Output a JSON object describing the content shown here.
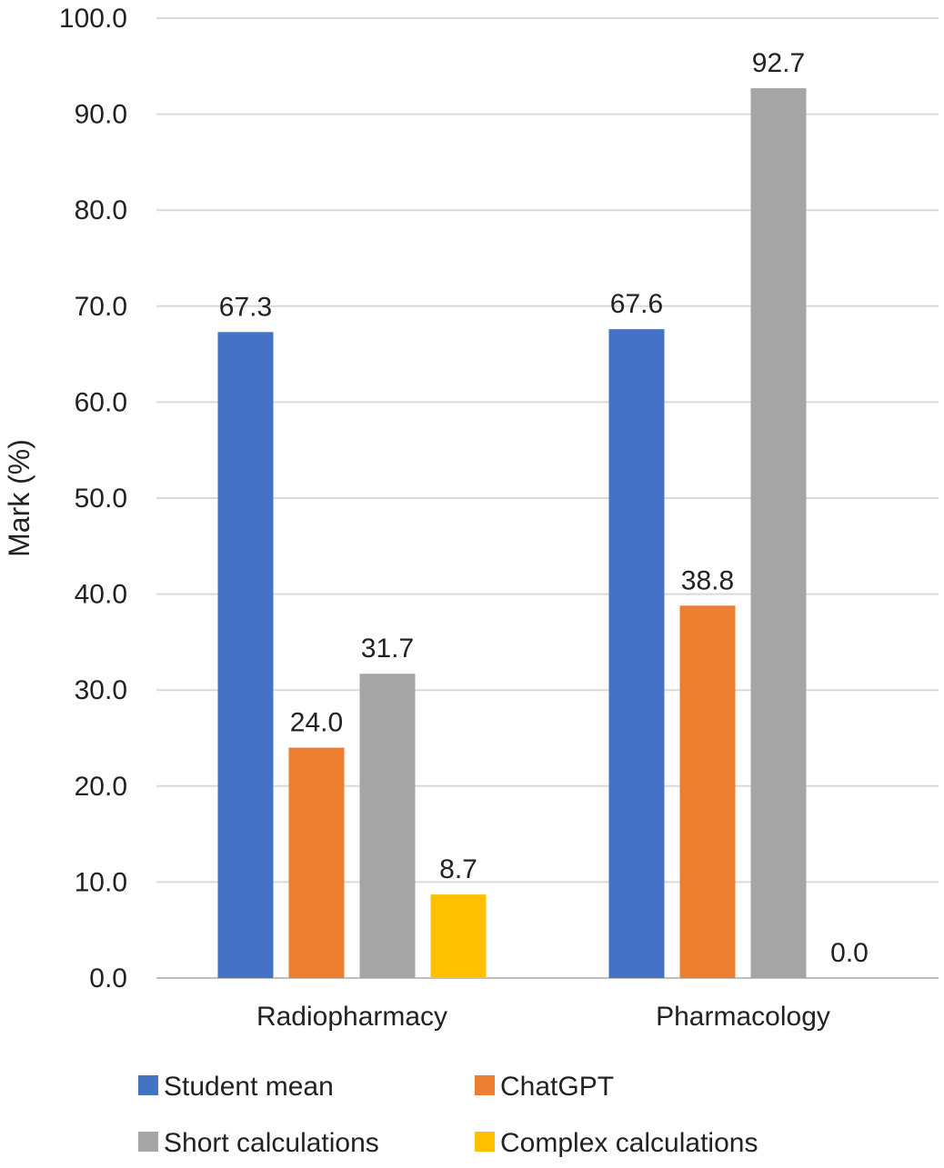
{
  "chart_data": {
    "type": "bar",
    "title": "",
    "xlabel": "",
    "ylabel": "Mark (%)",
    "ylim": [
      0,
      100
    ],
    "yticks": [
      "0.0",
      "10.0",
      "20.0",
      "30.0",
      "40.0",
      "50.0",
      "60.0",
      "70.0",
      "80.0",
      "90.0",
      "100.0"
    ],
    "grid": true,
    "legend_position": "bottom",
    "categories": [
      "Radiopharmacy",
      "Pharmacology"
    ],
    "series": [
      {
        "name": "Student mean",
        "color": "#4472C4",
        "values": [
          67.3,
          67.6
        ],
        "labels": [
          "67.3",
          "67.6"
        ]
      },
      {
        "name": "ChatGPT",
        "color": "#ED7D31",
        "values": [
          24.0,
          38.8
        ],
        "labels": [
          "24.0",
          "38.8"
        ]
      },
      {
        "name": "Short calculations",
        "color": "#A5A5A5",
        "values": [
          31.7,
          92.7
        ],
        "labels": [
          "31.7",
          "92.7"
        ]
      },
      {
        "name": "Complex calculations",
        "color": "#FFC000",
        "values": [
          8.7,
          0.0
        ],
        "labels": [
          "8.7",
          "0.0"
        ]
      }
    ]
  }
}
